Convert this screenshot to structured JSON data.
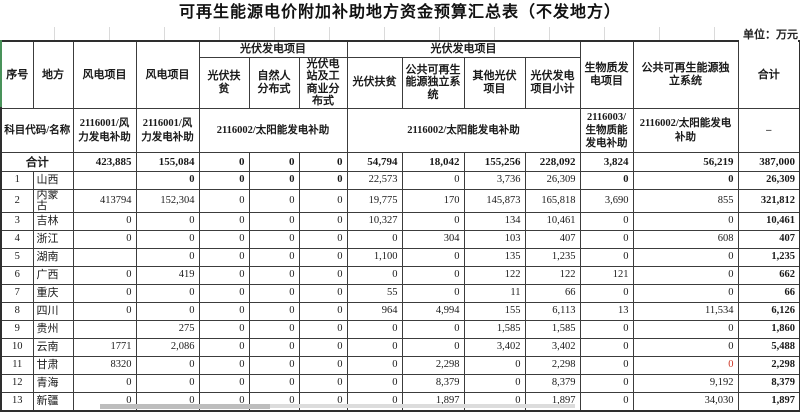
{
  "title": "可再生能源电价附加补助地方资金预算汇总表（不发地方）",
  "unit_note": "单位：万元",
  "table": {
    "header": {
      "seq": "序号",
      "region": "地方",
      "wind1": "风电项目",
      "wind2": "风电项目",
      "pv_group1": "光伏发电项目",
      "pv_group2": "光伏发电项目",
      "pv1_sub1": "光伏扶贫",
      "pv1_sub2": "自然人分布式",
      "pv1_sub3": "光伏电站及工商业分布式",
      "pv2_sub1": "光伏扶贫",
      "pv2_sub2": "公共可再生能源独立系统",
      "pv2_sub3": "其他光伏项目",
      "pv2_sub4": "光伏发电项目小计",
      "biomass": "生物质发电项目",
      "public_renewable": "公共可再生能源独立系统",
      "total": "合计"
    },
    "code_row": {
      "label": "科目代码/名称",
      "wind1": "2116001/风力发电补助",
      "wind2": "2116001/风力发电补助",
      "pv1": "2116002/太阳能发电补助",
      "pv2": "2116002/太阳能发电补助",
      "biomass": "2116003/生物质能发电补助",
      "public_renewable": "2116002/太阳能发电补助",
      "total": "–"
    },
    "total_row": {
      "label": "合计",
      "values": [
        "423,885",
        "155,084",
        "0",
        "0",
        "0",
        "54,794",
        "18,042",
        "155,256",
        "228,092",
        "3,824",
        "56,219",
        "387,000"
      ]
    },
    "rows": [
      {
        "seq": "1",
        "region": "山西",
        "values": [
          "",
          "0",
          "0",
          "0",
          "0",
          "22,573",
          "0",
          "3,736",
          "26,309",
          "0",
          "0",
          "26,309"
        ],
        "bold": [
          1,
          2,
          3,
          4,
          9,
          10
        ],
        "red": []
      },
      {
        "seq": "2",
        "region": "内蒙古",
        "values": [
          "413794",
          "152,304",
          "0",
          "0",
          "0",
          "19,775",
          "170",
          "145,873",
          "165,818",
          "3,690",
          "855",
          "321,812"
        ],
        "bold": [],
        "red": []
      },
      {
        "seq": "3",
        "region": "吉林",
        "values": [
          "0",
          "0",
          "0",
          "0",
          "0",
          "10,327",
          "0",
          "134",
          "10,461",
          "0",
          "0",
          "10,461"
        ],
        "bold": [],
        "red": []
      },
      {
        "seq": "4",
        "region": "浙江",
        "values": [
          "0",
          "0",
          "0",
          "0",
          "0",
          "0",
          "304",
          "103",
          "407",
          "0",
          "608",
          "407"
        ],
        "bold": [],
        "red": []
      },
      {
        "seq": "5",
        "region": "湖南",
        "values": [
          "",
          "0",
          "0",
          "0",
          "0",
          "1,100",
          "0",
          "135",
          "1,235",
          "0",
          "0",
          "1,235"
        ],
        "bold": [],
        "red": []
      },
      {
        "seq": "6",
        "region": "广西",
        "values": [
          "0",
          "419",
          "0",
          "0",
          "0",
          "0",
          "0",
          "122",
          "122",
          "121",
          "0",
          "662"
        ],
        "bold": [],
        "red": []
      },
      {
        "seq": "7",
        "region": "重庆",
        "values": [
          "0",
          "0",
          "0",
          "0",
          "0",
          "55",
          "0",
          "11",
          "66",
          "0",
          "0",
          "66"
        ],
        "bold": [],
        "red": []
      },
      {
        "seq": "8",
        "region": "四川",
        "values": [
          "0",
          "0",
          "0",
          "0",
          "0",
          "964",
          "4,994",
          "155",
          "6,113",
          "13",
          "11,534",
          "6,126"
        ],
        "bold": [],
        "red": []
      },
      {
        "seq": "9",
        "region": "贵州",
        "values": [
          "",
          "275",
          "0",
          "0",
          "0",
          "0",
          "0",
          "1,585",
          "1,585",
          "0",
          "0",
          "1,860"
        ],
        "bold": [],
        "red": []
      },
      {
        "seq": "10",
        "region": "云南",
        "values": [
          "1771",
          "2,086",
          "0",
          "0",
          "0",
          "0",
          "0",
          "3,402",
          "3,402",
          "0",
          "0",
          "5,488"
        ],
        "bold": [],
        "red": []
      },
      {
        "seq": "11",
        "region": "甘肃",
        "values": [
          "8320",
          "0",
          "0",
          "0",
          "0",
          "0",
          "2,298",
          "0",
          "2,298",
          "0",
          "0",
          "2,298"
        ],
        "bold": [],
        "red": [
          10
        ]
      },
      {
        "seq": "12",
        "region": "青海",
        "values": [
          "0",
          "0",
          "0",
          "0",
          "0",
          "0",
          "8,379",
          "0",
          "8,379",
          "0",
          "9,192",
          "8,379"
        ],
        "bold": [],
        "red": []
      },
      {
        "seq": "13",
        "region": "新疆",
        "values": [
          "0",
          "0",
          "0",
          "0",
          "0",
          "0",
          "1,897",
          "0",
          "1,897",
          "0",
          "34,030",
          "1,897"
        ],
        "bold": [],
        "red": []
      }
    ]
  }
}
